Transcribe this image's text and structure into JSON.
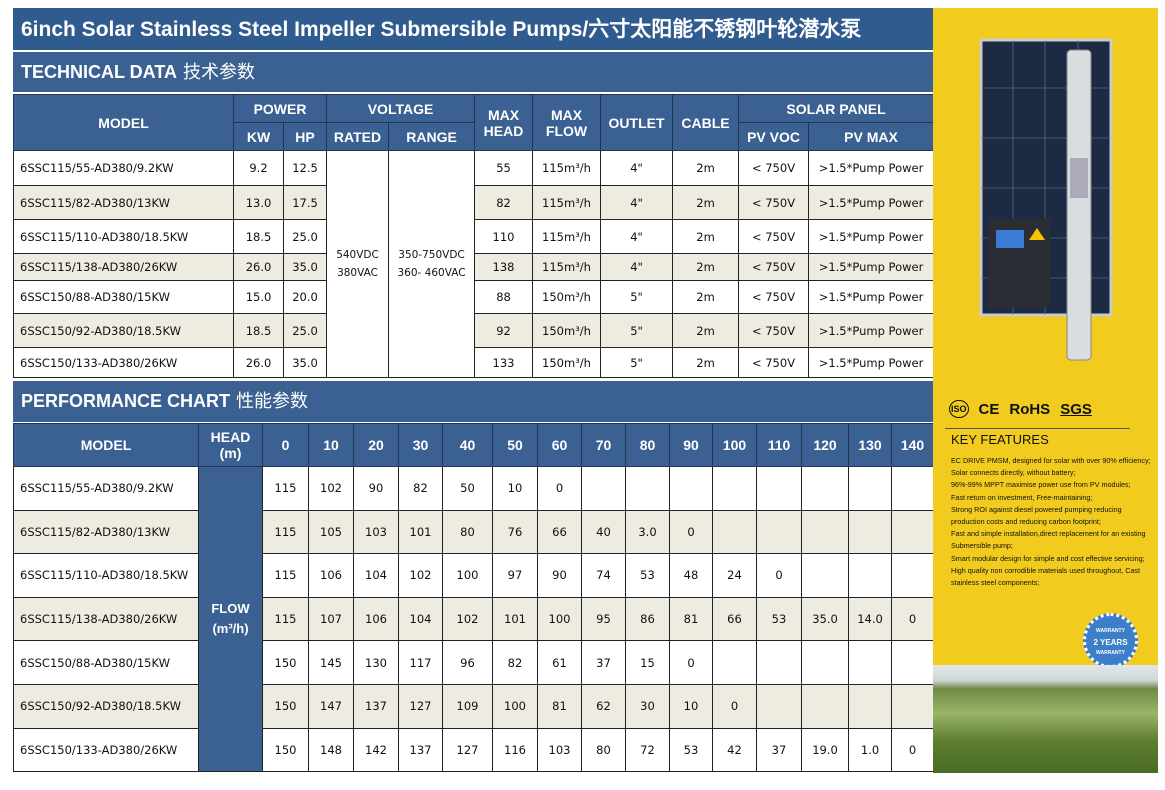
{
  "title": "6inch Solar Stainless Steel Impeller Submersible Pumps/六寸太阳能不锈钢叶轮潜水泵",
  "technical": {
    "heading": "TECHNICAL DATA",
    "heading_cn": "技术参数",
    "headers": {
      "model": "MODEL",
      "power": "POWER",
      "kw": "KW",
      "hp": "HP",
      "voltage": "VOLTAGE",
      "rated": "RATED",
      "range": "RANGE",
      "max_head": "MAX HEAD",
      "max_flow": "MAX FLOW",
      "outlet": "OUTLET",
      "cable": "CABLE",
      "solar_panel": "SOLAR PANEL",
      "pv_voc": "PV VOC",
      "pv_max": "PV MAX"
    },
    "rated": [
      "540VDC",
      "380VAC"
    ],
    "range": [
      "350-750VDC",
      "360- 460VAC"
    ],
    "rows": [
      [
        "6SSC115/55-AD380/9.2KW",
        "9.2",
        "12.5",
        "55",
        "115m³/h",
        "4\"",
        "2m",
        "< 750V",
        ">1.5*Pump Power"
      ],
      [
        "6SSC115/82-AD380/13KW",
        "13.0",
        "17.5",
        "82",
        "115m³/h",
        "4\"",
        "2m",
        "< 750V",
        ">1.5*Pump Power"
      ],
      [
        "6SSC115/110-AD380/18.5KW",
        "18.5",
        "25.0",
        "110",
        "115m³/h",
        "4\"",
        "2m",
        "< 750V",
        ">1.5*Pump Power"
      ],
      [
        "6SSC115/138-AD380/26KW",
        "26.0",
        "35.0",
        "138",
        "115m³/h",
        "4\"",
        "2m",
        "< 750V",
        ">1.5*Pump Power"
      ],
      [
        "6SSC150/88-AD380/15KW",
        "15.0",
        "20.0",
        "88",
        "150m³/h",
        "5\"",
        "2m",
        "< 750V",
        ">1.5*Pump Power"
      ],
      [
        "6SSC150/92-AD380/18.5KW",
        "18.5",
        "25.0",
        "92",
        "150m³/h",
        "5\"",
        "2m",
        "< 750V",
        ">1.5*Pump Power"
      ],
      [
        "6SSC150/133-AD380/26KW",
        "26.0",
        "35.0",
        "133",
        "150m³/h",
        "5\"",
        "2m",
        "< 750V",
        ">1.5*Pump Power"
      ]
    ]
  },
  "performance": {
    "heading": "PERFORMANCE CHART",
    "heading_cn": "性能参数",
    "model_header": "MODEL",
    "head_header": "HEAD",
    "head_unit": "(m)",
    "flow_label": "FLOW",
    "flow_unit": "(m³/h)",
    "heads": [
      "0",
      "10",
      "20",
      "30",
      "40",
      "50",
      "60",
      "70",
      "80",
      "90",
      "100",
      "110",
      "120",
      "130",
      "140"
    ],
    "rows": [
      {
        "model": "6SSC115/55-AD380/9.2KW",
        "values": [
          "115",
          "102",
          "90",
          "82",
          "50",
          "10",
          "0",
          "",
          "",
          "",
          "",
          "",
          "",
          "",
          ""
        ]
      },
      {
        "model": "6SSC115/82-AD380/13KW",
        "values": [
          "115",
          "105",
          "103",
          "101",
          "80",
          "76",
          "66",
          "40",
          "3.0",
          "0",
          "",
          "",
          "",
          "",
          ""
        ]
      },
      {
        "model": "6SSC115/110-AD380/18.5KW",
        "values": [
          "115",
          "106",
          "104",
          "102",
          "100",
          "97",
          "90",
          "74",
          "53",
          "48",
          "24",
          "0",
          "",
          "",
          ""
        ]
      },
      {
        "model": "6SSC115/138-AD380/26KW",
        "values": [
          "115",
          "107",
          "106",
          "104",
          "102",
          "101",
          "100",
          "95",
          "86",
          "81",
          "66",
          "53",
          "35.0",
          "14.0",
          "0"
        ]
      },
      {
        "model": "6SSC150/88-AD380/15KW",
        "values": [
          "150",
          "145",
          "130",
          "117",
          "96",
          "82",
          "61",
          "37",
          "15",
          "0",
          "",
          "",
          "",
          "",
          ""
        ]
      },
      {
        "model": "6SSC150/92-AD380/18.5KW",
        "values": [
          "150",
          "147",
          "137",
          "127",
          "109",
          "100",
          "81",
          "62",
          "30",
          "10",
          "0",
          "",
          "",
          "",
          ""
        ]
      },
      {
        "model": "6SSC150/133-AD380/26KW",
        "values": [
          "150",
          "148",
          "142",
          "137",
          "127",
          "116",
          "103",
          "80",
          "72",
          "53",
          "42",
          "37",
          "19.0",
          "1.0",
          "0"
        ]
      }
    ]
  },
  "sidebar": {
    "certs": [
      "ISO",
      "CE",
      "RoHS",
      "SGS"
    ],
    "key_features_title": "KEY FEATURES",
    "features": [
      "EC DRIVE PMSM, designed for solar with over 90% efficiency;",
      "Solar connects directly, without battery;",
      "96%-99% MPPT maximise power use from PV modules;",
      "Fast return on investment, Free-maintaining;",
      "Strong ROI against diesel powered pumping reducing production costs and reducing carbon footprint;",
      "Fast and simple installation,direct replacement for an existing Submersible pump;",
      "Smart modular design for simple and cost effective servicing;",
      "High quality non corrodible materials used throughout, Cast stainless steel components;"
    ],
    "warranty": [
      "WARRANTY",
      "2 YEARS",
      "WARRANTY"
    ]
  },
  "colors": {
    "header_blue": "#3a6191",
    "title_blue": "#2f5b8e",
    "alt_row": "#eeece1",
    "sidebar_yellow": "#f1cc1e"
  }
}
